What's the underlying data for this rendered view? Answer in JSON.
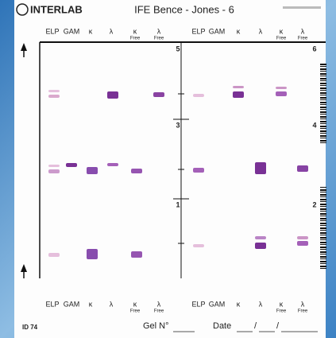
{
  "header": {
    "logo": "INTERLAB",
    "title": "IFE Bence - Jones - 6"
  },
  "column_labels": [
    {
      "symbol": "ELP"
    },
    {
      "symbol": "GAM"
    },
    {
      "symbol": "κ"
    },
    {
      "symbol": "λ"
    },
    {
      "symbol": "κ",
      "sub": "Free"
    },
    {
      "symbol": "λ",
      "sub": "Free"
    }
  ],
  "lane_numbers": [
    "5",
    "6",
    "3",
    "4",
    "1",
    "2"
  ],
  "footer": {
    "id": "ID 74",
    "gel": "Gel N°",
    "date": "Date",
    "separators": [
      "/",
      "/"
    ]
  }
}
